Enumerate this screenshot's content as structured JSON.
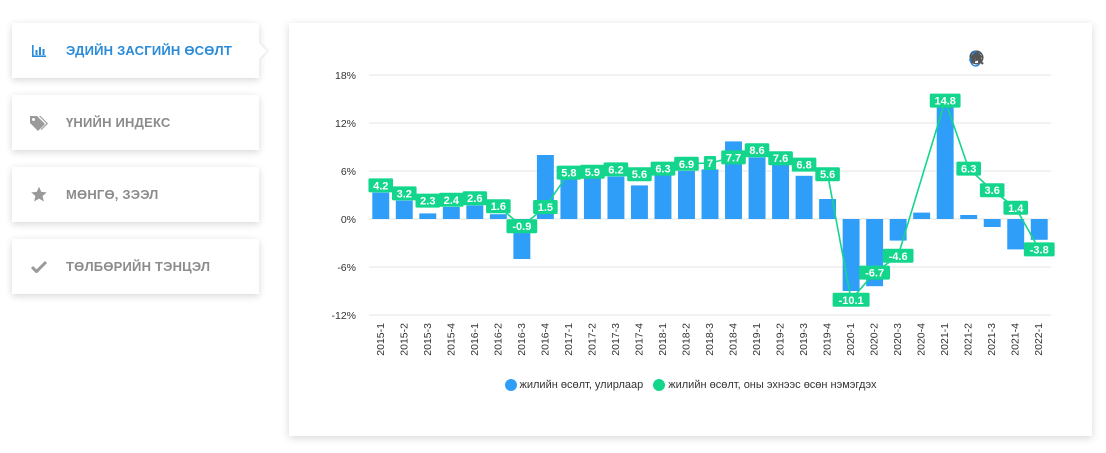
{
  "sidebar": {
    "items": [
      {
        "label": "ЭДИЙН ЗАСГИЙН ӨСӨЛТ",
        "icon": "bar-chart-icon",
        "active": true
      },
      {
        "label": "ҮНИЙН ИНДЕКС",
        "icon": "tags-icon",
        "active": false
      },
      {
        "label": "МӨНГӨ, ЗЭЭЛ",
        "icon": "star-icon",
        "active": false
      },
      {
        "label": "ТӨЛБӨРИЙН ТЭНЦЭЛ",
        "icon": "check-icon",
        "active": false
      }
    ]
  },
  "toolbar": {
    "icons": [
      "zoom-in-icon",
      "zoom-out-icon",
      "magnifier-icon",
      "pan-hand-icon",
      "home-icon"
    ]
  },
  "colors": {
    "accent": "#2a8bd8",
    "bar": "#2f9ef8",
    "line": "#13d68c",
    "grid": "#e6e6e6"
  },
  "chart_data": {
    "type": "bar",
    "categories": [
      "2015-1",
      "2015-2",
      "2015-3",
      "2015-4",
      "2016-1",
      "2016-2",
      "2016-3",
      "2016-4",
      "2017-1",
      "2017-2",
      "2017-3",
      "2017-4",
      "2018-1",
      "2018-2",
      "2018-3",
      "2018-4",
      "2019-1",
      "2019-2",
      "2019-3",
      "2019-4",
      "2020-1",
      "2020-2",
      "2020-3",
      "2020-4",
      "2021-1",
      "2021-2",
      "2021-3",
      "2021-4",
      "2022-1"
    ],
    "y_ticks": [
      "18%",
      "12%",
      "6%",
      "0%",
      "-6%",
      "-12%"
    ],
    "ylim": [
      -12,
      18
    ],
    "series": [
      {
        "name": "жилийн өсөлт, улирлаар",
        "type": "bar",
        "values": [
          3.3,
          2.3,
          0.7,
          1.5,
          1.7,
          0.6,
          -5.0,
          8.0,
          5.0,
          5.2,
          5.3,
          4.2,
          5.5,
          6.0,
          6.2,
          9.7,
          7.7,
          6.8,
          5.4,
          2.5,
          -9.0,
          -8.4,
          -2.7,
          0.8,
          14.8,
          0.5,
          -1.0,
          -3.8,
          -2.6
        ]
      },
      {
        "name": "жилийн өсөлт, оны эхнээс өсөн нэмэгдэх",
        "type": "line",
        "values": [
          4.2,
          3.2,
          2.3,
          2.4,
          2.6,
          1.6,
          -0.9,
          1.5,
          5.8,
          5.9,
          6.2,
          5.6,
          6.3,
          6.9,
          7,
          7.7,
          8.6,
          7.6,
          6.8,
          5.6,
          -10.1,
          -6.7,
          -4.6,
          null,
          14.8,
          6.3,
          3.6,
          1.4,
          -3.8
        ],
        "labels": [
          "4.2",
          "3.2",
          "2.3",
          "2.4",
          "2.6",
          "1.6",
          "-0.9",
          "1.5",
          "5.8",
          "5.9",
          "6.2",
          "5.6",
          "6.3",
          "6.9",
          "7",
          "7.7",
          "8.6",
          "7.6",
          "6.8",
          "5.6",
          "-10.1",
          "-6.7",
          "-4.6",
          "",
          "14.8",
          "6.3",
          "3.6",
          "1.4",
          "-3.8"
        ]
      }
    ],
    "grid": true,
    "legend": "bottom"
  }
}
